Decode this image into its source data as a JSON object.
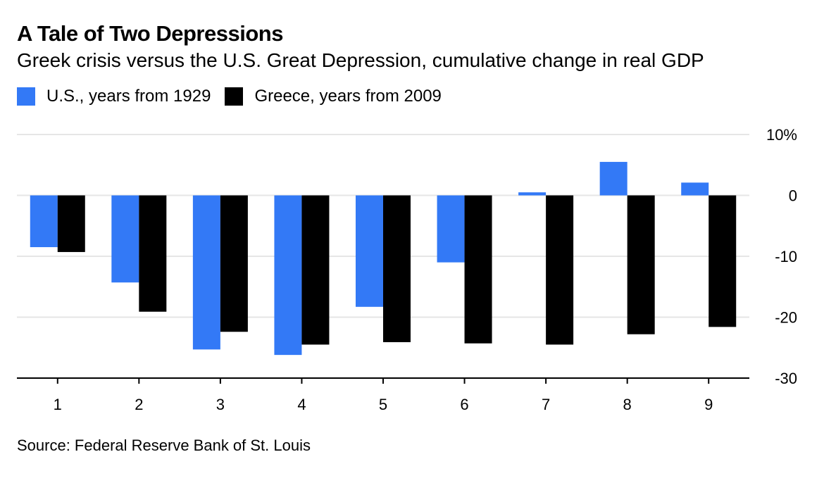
{
  "header": {
    "title": "A Tale of Two Depressions",
    "subtitle": "Greek crisis versus the U.S. Great Depression, cumulative change in real GDP"
  },
  "legend": [
    {
      "label": "U.S., years from 1929",
      "color": "#3379f6"
    },
    {
      "label": "Greece, years from 2009",
      "color": "#000000"
    }
  ],
  "chart_data": {
    "type": "bar",
    "categories": [
      "1",
      "2",
      "3",
      "4",
      "5",
      "6",
      "7",
      "8",
      "9"
    ],
    "series": [
      {
        "name": "U.S., years from 1929",
        "color": "#3379f6",
        "values": [
          -8.5,
          -14.3,
          -25.3,
          -26.2,
          -18.3,
          -11.0,
          0.5,
          5.5,
          2.1
        ]
      },
      {
        "name": "Greece, years from 2009",
        "color": "#000000",
        "values": [
          -9.3,
          -19.1,
          -22.4,
          -24.5,
          -24.1,
          -24.3,
          -24.5,
          -22.8,
          -21.6
        ]
      }
    ],
    "ylim": [
      -30,
      10
    ],
    "yticks": [
      10,
      0,
      -10,
      -20,
      -30
    ],
    "ytick_labels": [
      "10%",
      "0",
      "-10",
      "-20",
      "-30"
    ],
    "y_axis_side": "right",
    "grid": true,
    "legend_position": "top-left",
    "xlabel": "",
    "ylabel": ""
  },
  "footer": {
    "source": "Source: Federal Reserve Bank of St. Louis"
  }
}
